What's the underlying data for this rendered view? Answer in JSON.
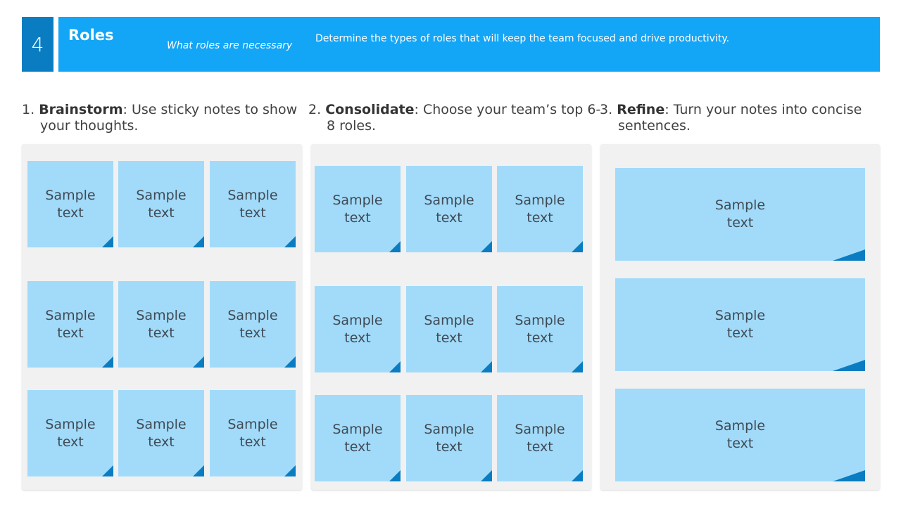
{
  "header": {
    "number": "4",
    "title": "Roles",
    "subtitle": "What roles are necessary",
    "description": "Determine the types of roles that will keep the team focused and drive productivity."
  },
  "steps": [
    {
      "num": "1.",
      "keyword": "Brainstorm",
      "text": ": Use sticky notes to show your thoughts."
    },
    {
      "num": "2.",
      "keyword": "Consolidate",
      "text": ": Choose your team’s top 6-8 roles."
    },
    {
      "num": "3.",
      "keyword": "Refine",
      "text": ": Turn your notes into concise sentences."
    }
  ],
  "note_text": [
    "Sample",
    "text"
  ],
  "colors": {
    "header_dark": "#0a7dc2",
    "header_light": "#13a5f6",
    "note": "#a2dbf9",
    "panel": "#f1f1f1"
  }
}
